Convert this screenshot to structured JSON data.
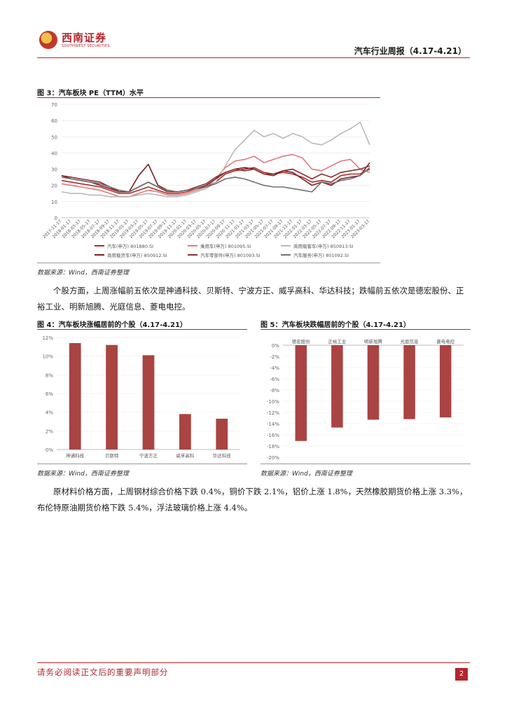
{
  "header": {
    "logo_text": "西南证券",
    "logo_sub": "SOUTHWEST SECURITIES",
    "title": "汽车行业周报（4.17-4.21）"
  },
  "figure3": {
    "title": "图 3：汽车板块 PE（TTM）水平",
    "source": "数据来源：Wind，西南证券整理"
  },
  "paragraph1": "个股方面，上周涨幅前五依次是神通科技、贝斯特、宁波方正、威孚高科、华达科技；跌幅前五依次是德宏股份、正裕工业、明新旭腾、光庭信息、菱电电控。",
  "figure4": {
    "title": "图 4：汽车板块涨幅居前的个股（4.17-4.21）",
    "source": "数据来源：Wind，西南证券整理"
  },
  "figure5": {
    "title": "图 5：汽车板块跌幅居前的个股（4.17-4.21）",
    "source": "数据来源：Wind，西南证券整理"
  },
  "paragraph2": "原材料价格方面，上周钢材综合价格下跌 0.4%，铜价下跌 2.1%，铝价上涨 1.8%，天然橡胶期货价格上涨 3.3%，布伦特原油期货价格下跌 5.4%，浮法玻璃价格上涨 4.4%。",
  "footer": {
    "note": "请务必阅读正文后的重要声明部分",
    "page": "2"
  },
  "colors": {
    "brand": "#b3262c",
    "bar": "#a94442"
  },
  "chart_data": [
    {
      "type": "line",
      "ylim": [
        0,
        70
      ],
      "yticks": [
        0,
        10,
        20,
        30,
        40,
        50,
        60,
        70
      ],
      "x": [
        "2017-11-17",
        "2018-01-17",
        "2018-03-17",
        "2018-05-17",
        "2018-07-17",
        "2018-09-17",
        "2018-11-17",
        "2019-01-17",
        "2019-03-17",
        "2019-05-17",
        "2019-07-17",
        "2019-09-17",
        "2019-11-17",
        "2020-01-17",
        "2020-03-17",
        "2020-05-17",
        "2020-07-17",
        "2020-09-17",
        "2020-11-17",
        "2021-01-17",
        "2021-03-17",
        "2021-05-17",
        "2021-07-17",
        "2021-09-17",
        "2021-11-17",
        "2022-01-17",
        "2022-03-17",
        "2022-05-17",
        "2022-07-17",
        "2022-09-17",
        "2022-11-17",
        "2023-01-17",
        "2023-03-17"
      ],
      "series": [
        {
          "name": "汽车(申万) 801880.SI",
          "color": "#b02a2a",
          "values": [
            23,
            22,
            21,
            20,
            19,
            17,
            15,
            15,
            17,
            19,
            17,
            15,
            15,
            16,
            18,
            19,
            22,
            27,
            29,
            30,
            31,
            28,
            27,
            28,
            27,
            25,
            22,
            23,
            22,
            26,
            27,
            27,
            30
          ]
        },
        {
          "name": "乘用车(申万) 801095.SI",
          "color": "#e07a7a",
          "values": [
            21,
            20,
            19,
            18,
            17,
            15,
            13,
            13,
            15,
            17,
            16,
            14,
            14,
            15,
            17,
            19,
            24,
            31,
            35,
            36,
            38,
            34,
            36,
            38,
            39,
            37,
            30,
            29,
            32,
            35,
            36,
            30,
            28
          ]
        },
        {
          "name": "商用载客车(申万) 850913.SI",
          "color": "#b9b9b9",
          "values": [
            16,
            15,
            15,
            14,
            14,
            13,
            13,
            13,
            14,
            15,
            14,
            13,
            13,
            14,
            16,
            18,
            22,
            32,
            42,
            48,
            54,
            50,
            52,
            49,
            52,
            50,
            46,
            45,
            48,
            52,
            55,
            59,
            45
          ]
        },
        {
          "name": "商用载货车(申万) 850912.SI",
          "color": "#7a1f24",
          "values": [
            26,
            24,
            23,
            22,
            20,
            18,
            16,
            16,
            26,
            33,
            20,
            17,
            16,
            17,
            18,
            20,
            24,
            28,
            30,
            31,
            30,
            27,
            26,
            29,
            28,
            24,
            20,
            22,
            20,
            24,
            25,
            26,
            34
          ]
        },
        {
          "name": "汽车零部件(申万) 801093.SI",
          "color": "#8a3030",
          "values": [
            26,
            25,
            24,
            23,
            22,
            19,
            16,
            16,
            19,
            22,
            19,
            16,
            16,
            17,
            19,
            21,
            25,
            28,
            30,
            29,
            30,
            27,
            27,
            29,
            30,
            27,
            24,
            27,
            25,
            28,
            29,
            30,
            32
          ]
        },
        {
          "name": "汽车服务(申万) 801092.SI",
          "color": "#707070",
          "values": [
            25,
            24,
            23,
            22,
            21,
            19,
            17,
            16,
            19,
            22,
            19,
            17,
            16,
            17,
            18,
            19,
            21,
            24,
            25,
            24,
            22,
            20,
            19,
            19,
            18,
            17,
            16,
            22,
            21,
            23,
            24,
            26,
            31
          ]
        }
      ]
    },
    {
      "type": "bar",
      "ylim": [
        0,
        12
      ],
      "yticks": [
        "0%",
        "2%",
        "4%",
        "6%",
        "8%",
        "10%",
        "12%"
      ],
      "categories": [
        "神通科技",
        "贝斯特",
        "宁波方正",
        "威孚高科",
        "华达科技"
      ],
      "values": [
        11.4,
        11.2,
        10.1,
        3.8,
        3.3
      ]
    },
    {
      "type": "bar",
      "ylim": [
        -20,
        0
      ],
      "yticks": [
        "0%",
        "-2%",
        "-4%",
        "-6%",
        "-8%",
        "-10%",
        "-12%",
        "-14%",
        "-16%",
        "-18%",
        "-20%"
      ],
      "categories": [
        "德宏股份",
        "正裕工业",
        "明新旭腾",
        "光庭信息",
        "菱电电控"
      ],
      "values": [
        -17.1,
        -14.7,
        -13.3,
        -13.2,
        -12.9
      ]
    }
  ]
}
